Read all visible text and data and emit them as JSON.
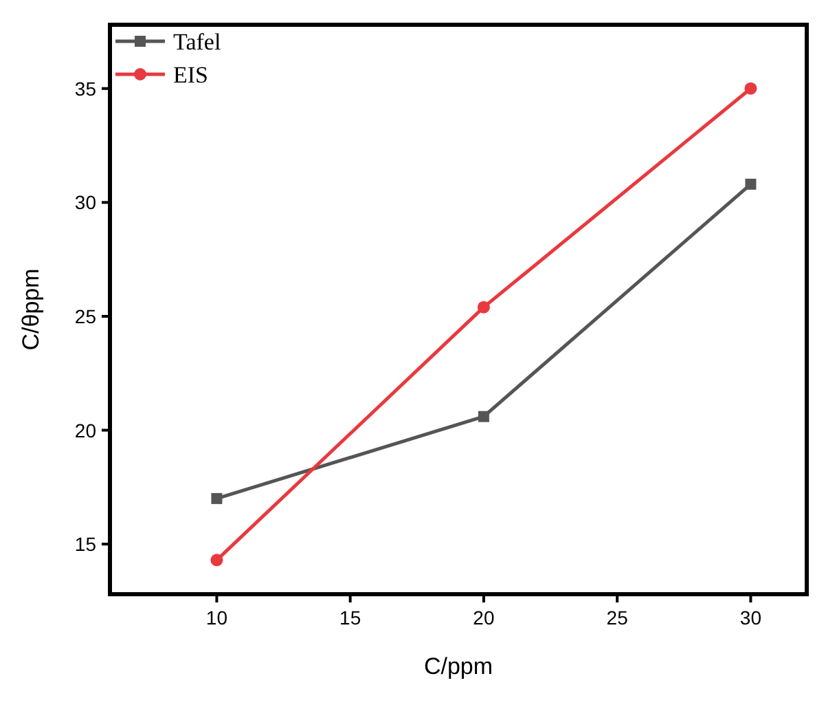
{
  "chart_data": {
    "type": "line",
    "xlabel": "C/ppm",
    "ylabel": "C/θppm",
    "x": [
      10,
      20,
      30
    ],
    "series": [
      {
        "name": "Tafel",
        "color": "#555555",
        "marker": "square",
        "values": [
          17.0,
          20.6,
          30.8
        ]
      },
      {
        "name": "EIS",
        "color": "#e8393f",
        "marker": "circle",
        "values": [
          14.3,
          25.4,
          35.0
        ]
      }
    ],
    "xlim": [
      6,
      32.1
    ],
    "xticks": [
      10,
      15,
      20,
      25,
      30
    ],
    "ylim": [
      12.8,
      37.8
    ],
    "yticks": [
      15,
      20,
      25,
      30,
      35
    ],
    "grid": false,
    "legend": "top left",
    "line_style": "solid"
  }
}
